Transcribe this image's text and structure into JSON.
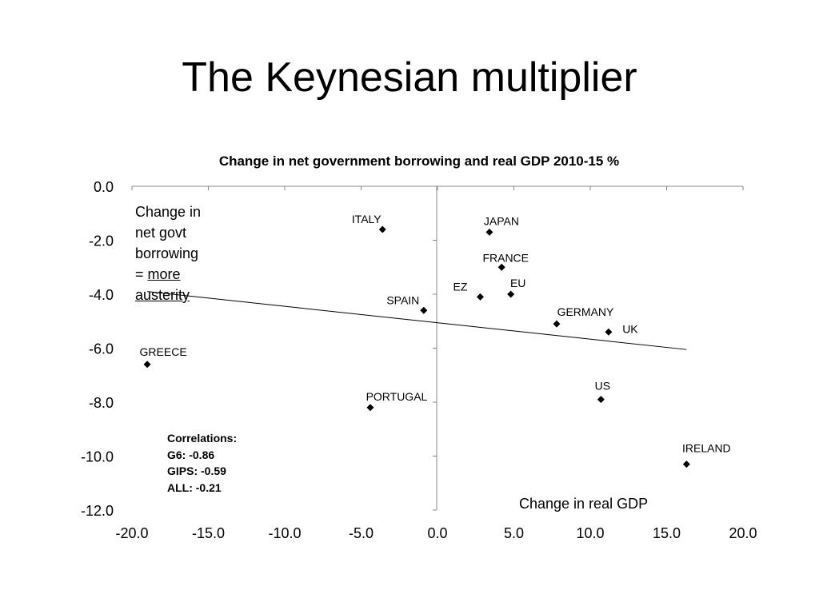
{
  "slide": {
    "title": "The Keynesian multiplier"
  },
  "chart_data": {
    "type": "scatter",
    "title": "Change in net government borrowing and real GDP 2010-15 %",
    "xlabel": "Change in real GDP",
    "ylabel": {
      "lines": [
        "Change in",
        "net govt",
        "borrowing"
      ],
      "prefix": "= ",
      "emphasis": "more",
      "last": "austerity"
    },
    "xlim": [
      -20,
      20
    ],
    "ylim": [
      -12,
      0
    ],
    "xticks": [
      "-20.0",
      "-15.0",
      "-10.0",
      "-5.0",
      "0.0",
      "5.0",
      "10.0",
      "15.0",
      "20.0"
    ],
    "yticks": [
      "0.0",
      "-2.0",
      "-4.0",
      "-6.0",
      "-8.0",
      "-10.0",
      "-12.0"
    ],
    "points": [
      {
        "label": "ITALY",
        "x": -3.6,
        "y": -1.6
      },
      {
        "label": "JAPAN",
        "x": 3.4,
        "y": -1.7
      },
      {
        "label": "FRANCE",
        "x": 4.2,
        "y": -3.0
      },
      {
        "label": "EU",
        "x": 4.8,
        "y": -4.0
      },
      {
        "label": "EZ",
        "x": 2.8,
        "y": -4.1
      },
      {
        "label": "SPAIN",
        "x": -0.9,
        "y": -4.6
      },
      {
        "label": "GERMANY",
        "x": 7.8,
        "y": -5.1
      },
      {
        "label": "UK",
        "x": 11.2,
        "y": -5.4
      },
      {
        "label": "GREECE",
        "x": -19.0,
        "y": -6.6
      },
      {
        "label": "US",
        "x": 10.7,
        "y": -7.9
      },
      {
        "label": "PORTUGAL",
        "x": -4.4,
        "y": -8.2
      },
      {
        "label": "IRELAND",
        "x": 16.3,
        "y": -10.3
      }
    ],
    "trendline": {
      "x": [
        -19.0,
        16.3
      ],
      "y": [
        -3.9,
        -6.05
      ]
    },
    "correlations": {
      "heading": "Correlations:",
      "items": [
        "G6: -0.86",
        "GIPS: -0.59",
        "ALL: -0.21"
      ]
    }
  }
}
